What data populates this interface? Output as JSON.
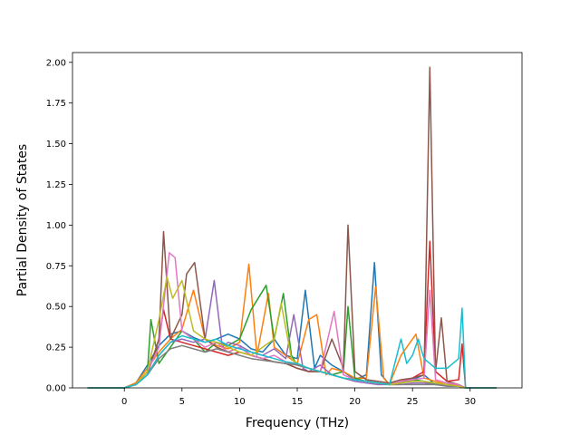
{
  "chart_data": {
    "type": "line",
    "title": "",
    "xlabel": "Frequency (THz)",
    "ylabel": "Partial Density of States",
    "xlim": [
      -4.5,
      34.5
    ],
    "ylim": [
      0.0,
      2.06
    ],
    "x_ticks": [
      0,
      5,
      10,
      15,
      20,
      25,
      30
    ],
    "x_tick_labels": [
      "0",
      "5",
      "10",
      "15",
      "20",
      "25",
      "30"
    ],
    "y_ticks": [
      0.0,
      0.25,
      0.5,
      0.75,
      1.0,
      1.25,
      1.5,
      1.75,
      2.0
    ],
    "y_tick_labels": [
      "0.00",
      "0.25",
      "0.50",
      "0.75",
      "1.00",
      "1.25",
      "1.50",
      "1.75",
      "2.00"
    ],
    "grid": false,
    "legend": "none",
    "x_range_of_data": [
      -3.2,
      32.3
    ],
    "series": [
      {
        "color": "#1f77b4",
        "x": [
          -3.2,
          0,
          1,
          2,
          3,
          4,
          5,
          6,
          7,
          8,
          9,
          10,
          11,
          12,
          13,
          14,
          15,
          15.7,
          16.5,
          17,
          18,
          19,
          20,
          21,
          21.7,
          22.3,
          23,
          24,
          25,
          26,
          27,
          28,
          29,
          29.6,
          31,
          32.3
        ],
        "y": [
          0,
          0,
          0.03,
          0.14,
          0.26,
          0.33,
          0.35,
          0.31,
          0.28,
          0.3,
          0.33,
          0.3,
          0.24,
          0.22,
          0.3,
          0.2,
          0.18,
          0.6,
          0.12,
          0.2,
          0.14,
          0.1,
          0.05,
          0.08,
          0.77,
          0.08,
          0.02,
          0.03,
          0.05,
          0.08,
          0.02,
          0.02,
          0.02,
          0,
          0,
          0
        ]
      },
      {
        "color": "#ff7f0e",
        "x": [
          -3.2,
          0,
          1,
          2,
          3,
          4,
          5,
          6,
          7,
          8,
          9,
          10,
          10.8,
          11.5,
          12.5,
          13,
          14,
          15,
          16,
          16.7,
          17.5,
          18,
          19,
          20,
          21,
          21.8,
          22.5,
          23,
          24,
          25.3,
          26,
          27,
          28,
          29,
          29.6,
          31,
          32.3
        ],
        "y": [
          0,
          0,
          0.03,
          0.12,
          0.22,
          0.3,
          0.36,
          0.6,
          0.3,
          0.26,
          0.24,
          0.28,
          0.76,
          0.2,
          0.58,
          0.25,
          0.2,
          0.15,
          0.42,
          0.45,
          0.08,
          0.12,
          0.1,
          0.06,
          0.06,
          0.62,
          0.06,
          0.02,
          0.2,
          0.33,
          0.06,
          0.04,
          0.02,
          0.02,
          0,
          0,
          0
        ]
      },
      {
        "color": "#2ca02c",
        "x": [
          -3.2,
          0,
          1,
          2,
          2.3,
          3,
          4,
          5,
          6,
          7,
          8,
          9,
          10,
          11,
          12.3,
          13,
          13.8,
          14.5,
          15,
          16,
          17,
          18,
          19,
          19.4,
          20,
          21,
          22,
          23,
          24,
          25,
          26,
          27,
          28,
          29,
          29.6,
          31,
          32.3
        ],
        "y": [
          0,
          0,
          0.02,
          0.1,
          0.42,
          0.15,
          0.25,
          0.35,
          0.3,
          0.22,
          0.28,
          0.26,
          0.3,
          0.48,
          0.63,
          0.3,
          0.58,
          0.2,
          0.14,
          0.12,
          0.1,
          0.08,
          0.1,
          0.5,
          0.06,
          0.04,
          0.03,
          0.02,
          0.03,
          0.05,
          0.04,
          0.02,
          0.02,
          0.01,
          0,
          0,
          0
        ]
      },
      {
        "color": "#d62728",
        "x": [
          -3.2,
          0,
          1,
          2,
          3,
          3.4,
          4,
          5,
          6,
          7,
          8,
          9,
          10,
          11,
          12,
          13,
          14,
          15,
          16,
          17,
          18,
          19,
          20,
          21,
          22,
          23,
          24,
          25,
          26,
          26.5,
          27,
          28,
          29,
          29.3,
          29.6,
          31,
          32.3
        ],
        "y": [
          0,
          0,
          0.02,
          0.08,
          0.3,
          0.48,
          0.3,
          0.28,
          0.26,
          0.24,
          0.22,
          0.2,
          0.22,
          0.2,
          0.18,
          0.16,
          0.15,
          0.12,
          0.1,
          0.1,
          0.08,
          0.06,
          0.05,
          0.04,
          0.03,
          0.02,
          0.04,
          0.06,
          0.1,
          0.9,
          0.1,
          0.04,
          0.05,
          0.27,
          0,
          0,
          0
        ]
      },
      {
        "color": "#9467bd",
        "x": [
          -3.2,
          0,
          1,
          2,
          3,
          4,
          5,
          6,
          7,
          7.8,
          8.5,
          9,
          10,
          11,
          12,
          13,
          14,
          14.7,
          15.5,
          16,
          17,
          18,
          19,
          20,
          21,
          22,
          23,
          24,
          25,
          26,
          27,
          28,
          29,
          29.6,
          31,
          32.3
        ],
        "y": [
          0,
          0,
          0.02,
          0.08,
          0.2,
          0.28,
          0.3,
          0.28,
          0.3,
          0.66,
          0.25,
          0.28,
          0.26,
          0.22,
          0.2,
          0.24,
          0.18,
          0.45,
          0.12,
          0.1,
          0.14,
          0.08,
          0.06,
          0.04,
          0.03,
          0.02,
          0.02,
          0.02,
          0.03,
          0.03,
          0.02,
          0.02,
          0.01,
          0,
          0,
          0
        ]
      },
      {
        "color": "#8c564b",
        "x": [
          -3.2,
          0,
          1,
          2,
          3,
          3.4,
          4,
          5,
          5.4,
          6.1,
          7,
          8,
          9,
          10,
          11,
          12,
          13,
          14,
          15,
          16,
          17,
          18,
          19,
          19.4,
          20,
          21,
          22,
          23,
          24,
          25,
          26,
          26.5,
          27,
          27.5,
          28,
          29,
          29.6,
          31,
          32.3
        ],
        "y": [
          0,
          0,
          0.02,
          0.08,
          0.3,
          0.96,
          0.3,
          0.45,
          0.7,
          0.77,
          0.3,
          0.25,
          0.22,
          0.25,
          0.2,
          0.18,
          0.16,
          0.15,
          0.12,
          0.1,
          0.1,
          0.3,
          0.12,
          1.0,
          0.1,
          0.05,
          0.04,
          0.03,
          0.05,
          0.06,
          0.08,
          1.97,
          0.1,
          0.43,
          0.04,
          0.02,
          0,
          0,
          0
        ]
      },
      {
        "color": "#e377c2",
        "x": [
          -3.2,
          0,
          1,
          2,
          3,
          3.9,
          4.4,
          5,
          6,
          7,
          8,
          9,
          10,
          11,
          12,
          13,
          14,
          15,
          16,
          17,
          18.2,
          19,
          20,
          21,
          22,
          23,
          24,
          25,
          26,
          26.5,
          27,
          28,
          29,
          29.6,
          31,
          32.3
        ],
        "y": [
          0,
          0,
          0.02,
          0.1,
          0.25,
          0.83,
          0.8,
          0.35,
          0.3,
          0.25,
          0.28,
          0.22,
          0.25,
          0.2,
          0.18,
          0.2,
          0.16,
          0.14,
          0.12,
          0.1,
          0.47,
          0.08,
          0.05,
          0.04,
          0.03,
          0.02,
          0.04,
          0.05,
          0.06,
          0.6,
          0.05,
          0.03,
          0.02,
          0,
          0,
          0
        ]
      },
      {
        "color": "#7f7f7f",
        "x": [
          -3.2,
          0,
          1,
          2,
          3,
          4,
          5,
          6,
          7,
          8,
          9,
          10,
          11,
          12,
          13,
          14,
          15,
          16,
          17,
          18,
          19,
          20,
          21,
          22,
          23,
          24,
          25,
          26,
          27,
          28,
          29,
          29.6,
          31,
          32.3
        ],
        "y": [
          0,
          0,
          0.02,
          0.08,
          0.18,
          0.24,
          0.26,
          0.24,
          0.22,
          0.24,
          0.22,
          0.2,
          0.18,
          0.17,
          0.16,
          0.15,
          0.14,
          0.12,
          0.1,
          0.08,
          0.06,
          0.05,
          0.04,
          0.03,
          0.02,
          0.02,
          0.02,
          0.02,
          0.02,
          0.01,
          0.01,
          0,
          0,
          0
        ]
      },
      {
        "color": "#bcbd22",
        "x": [
          -3.2,
          0,
          1,
          2,
          3,
          3.7,
          4.2,
          5,
          6,
          7,
          8,
          9,
          10,
          11,
          12,
          13,
          13.6,
          14.5,
          15,
          16,
          17,
          18,
          19,
          20,
          21,
          22,
          23,
          24,
          25,
          26,
          27,
          28,
          29,
          29.6,
          31,
          32.3
        ],
        "y": [
          0,
          0,
          0.02,
          0.1,
          0.42,
          0.68,
          0.55,
          0.66,
          0.35,
          0.3,
          0.28,
          0.25,
          0.22,
          0.2,
          0.25,
          0.3,
          0.52,
          0.18,
          0.15,
          0.12,
          0.1,
          0.08,
          0.06,
          0.05,
          0.04,
          0.03,
          0.02,
          0.03,
          0.04,
          0.04,
          0.03,
          0.02,
          0.01,
          0,
          0,
          0
        ]
      },
      {
        "color": "#17becf",
        "x": [
          -3.2,
          0,
          1,
          2,
          3,
          4,
          5,
          6,
          7,
          8,
          9,
          10,
          11,
          12,
          13,
          14,
          15,
          16,
          17,
          18,
          19,
          20,
          21,
          22,
          23,
          24,
          24.5,
          25,
          25.5,
          26,
          27,
          28,
          29,
          29.3,
          29.6,
          31,
          32.3
        ],
        "y": [
          0,
          0,
          0.02,
          0.08,
          0.2,
          0.28,
          0.32,
          0.3,
          0.28,
          0.3,
          0.26,
          0.24,
          0.22,
          0.2,
          0.18,
          0.16,
          0.15,
          0.12,
          0.1,
          0.08,
          0.06,
          0.05,
          0.04,
          0.03,
          0.02,
          0.3,
          0.15,
          0.2,
          0.3,
          0.18,
          0.12,
          0.12,
          0.18,
          0.49,
          0,
          0,
          0
        ]
      }
    ]
  }
}
